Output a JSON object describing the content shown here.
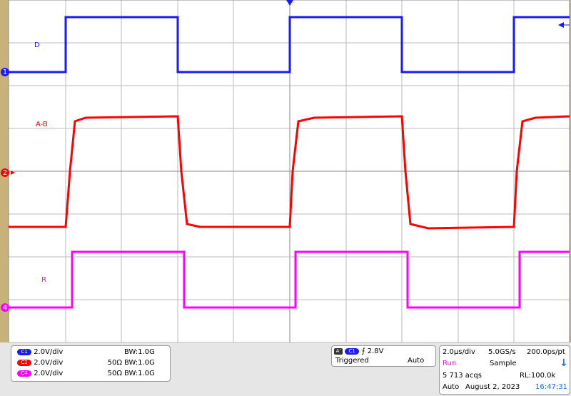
{
  "traces": [
    {
      "label": "D",
      "marker": "1"
    },
    {
      "label": "A-B",
      "marker": "2"
    },
    {
      "label": "R",
      "marker": "4"
    }
  ],
  "channels": [
    {
      "badge": "C1",
      "scale": "2.0V/div",
      "impedance": "",
      "bandwidth": "BW:1.0G"
    },
    {
      "badge": "C2",
      "scale": "2.0V/div",
      "impedance": "50Ω",
      "bandwidth": "BW:1.0G"
    },
    {
      "badge": "C4",
      "scale": "2.0V/div",
      "impedance": "50Ω",
      "bandwidth": "BW:1.0G"
    }
  ],
  "trigger": {
    "mode_badge": "A'",
    "source": "C1",
    "level": "⨍ 2.8V",
    "state": "Triggered",
    "sweep": "Auto"
  },
  "acquisition": {
    "timebase": "2.0µs/div",
    "sample_rate": "5.0GS/s",
    "resolution": "200.0ps/pt",
    "run": "Run",
    "mode": "Sample",
    "acqs": "5 713 acqs",
    "record_length": "RL:100.0k",
    "auto": "Auto",
    "date": "August 2, 2023",
    "time": "16:47:31"
  }
}
